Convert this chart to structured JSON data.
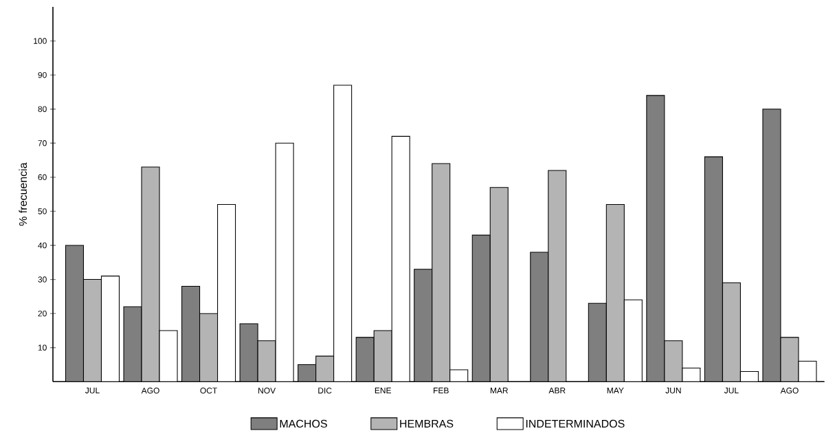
{
  "chart_data": {
    "type": "bar",
    "ylabel": "% frecuencia",
    "categories": [
      "JUL",
      "AGO",
      "OCT",
      "NOV",
      "DIC",
      "ENE",
      "FEB",
      "MAR",
      "ABR",
      "MAY",
      "JUN",
      "JUL",
      "AGO"
    ],
    "series": [
      {
        "name": "MACHOS",
        "color": "#7f7f7f",
        "values": [
          40,
          22,
          28,
          17,
          5,
          13,
          33,
          43,
          38,
          23,
          84,
          66,
          80
        ]
      },
      {
        "name": "HEMBRAS",
        "color": "#b4b4b4",
        "values": [
          30,
          63,
          20,
          12,
          7.5,
          15,
          64,
          57,
          62,
          52,
          12,
          29,
          13
        ]
      },
      {
        "name": "INDETERMINADOS",
        "color": "#ffffff",
        "values": [
          31,
          15,
          52,
          70,
          87,
          72,
          3.5,
          null,
          null,
          24,
          4,
          3,
          6
        ]
      }
    ],
    "ylim": [
      0,
      110
    ],
    "yticks": [
      10,
      20,
      30,
      40,
      50,
      60,
      70,
      80,
      90,
      100
    ],
    "legend": "bottom"
  }
}
